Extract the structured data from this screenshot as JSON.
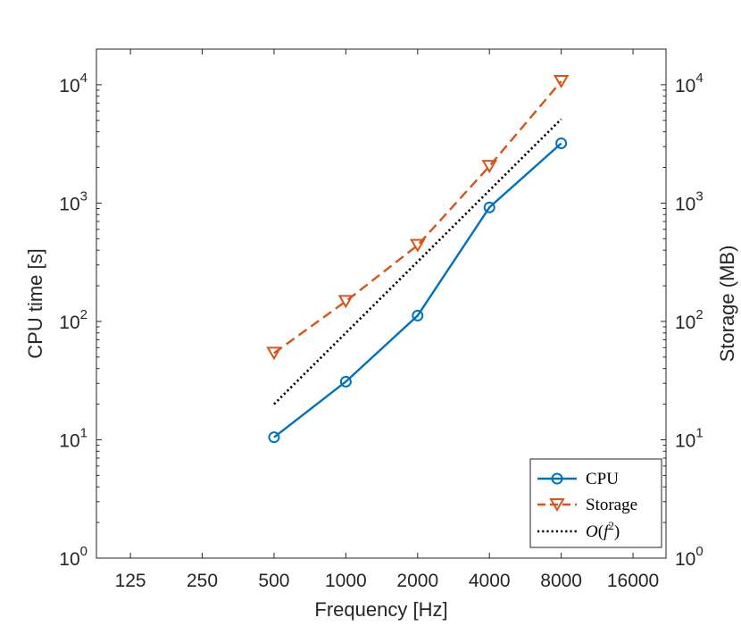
{
  "chart_data": {
    "type": "line",
    "xscale": "log2",
    "yscale": "log10",
    "xlabel": "Frequency [Hz]",
    "ylabel": "CPU time [s]",
    "y2label": "Storage (MB)",
    "xlim": [
      90,
      22000
    ],
    "ylim": [
      1,
      20000
    ],
    "x_ticks": [
      125,
      250,
      500,
      1000,
      2000,
      4000,
      8000,
      16000
    ],
    "y_ticks": [
      {
        "value": 1,
        "base": "10",
        "exp": "0"
      },
      {
        "value": 10,
        "base": "10",
        "exp": "1"
      },
      {
        "value": 100,
        "base": "10",
        "exp": "2"
      },
      {
        "value": 1000,
        "base": "10",
        "exp": "3"
      },
      {
        "value": 10000,
        "base": "10",
        "exp": "4"
      }
    ],
    "series": [
      {
        "name": "CPU",
        "color": "#0072BD",
        "style": "solid",
        "marker": "circle",
        "x": [
          500,
          1000,
          2000,
          4000,
          8000
        ],
        "values": [
          10.5,
          31,
          112,
          920,
          3200
        ]
      },
      {
        "name": "Storage",
        "color": "#D95319",
        "style": "dashed",
        "marker": "triangle-down",
        "x": [
          500,
          1000,
          2000,
          4000,
          8000
        ],
        "values": [
          54,
          148,
          440,
          2050,
          10700
        ]
      },
      {
        "name": "O(f^2)",
        "color": "#000000",
        "style": "dotted",
        "marker": "none",
        "x": [
          500,
          8000
        ],
        "values": [
          20,
          5120
        ]
      }
    ],
    "legend": {
      "placement": "bottom-right",
      "entries": [
        "CPU",
        "Storage"
      ],
      "o_entry": {
        "script": "O",
        "open": "(",
        "var": "f",
        "power": "2",
        "close": ")"
      }
    }
  }
}
